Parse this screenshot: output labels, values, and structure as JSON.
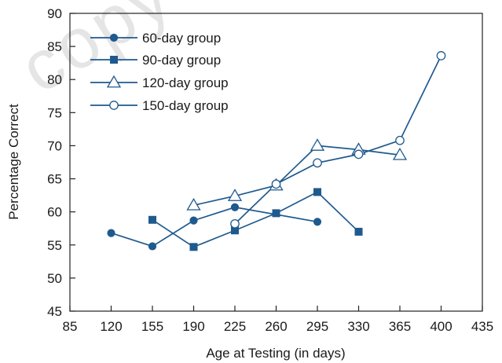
{
  "chart_data": {
    "type": "line",
    "title": "",
    "xlabel": "Age at Testing (in days)",
    "ylabel": "Percentage Correct",
    "xlim": [
      85,
      435
    ],
    "ylim": [
      45,
      90
    ],
    "xticks": [
      85,
      120,
      155,
      190,
      225,
      260,
      295,
      330,
      365,
      400,
      435
    ],
    "yticks": [
      45,
      50,
      55,
      60,
      65,
      70,
      75,
      80,
      85,
      90
    ],
    "grid": false,
    "legend_position": "top-left",
    "series": [
      {
        "name": "60-day group",
        "marker": "filled-circle",
        "color": "#1f5a8e",
        "x": [
          120,
          155,
          190,
          225,
          295
        ],
        "y": [
          56.8,
          54.8,
          58.7,
          60.7,
          58.5
        ]
      },
      {
        "name": "90-day group",
        "marker": "filled-square",
        "color": "#1f5a8e",
        "x": [
          155,
          190,
          225,
          260,
          295,
          330
        ],
        "y": [
          58.8,
          54.7,
          57.2,
          59.8,
          63.0,
          57.0
        ]
      },
      {
        "name": "120-day group",
        "marker": "open-triangle",
        "color": "#1f5a8e",
        "x": [
          190,
          225,
          260,
          295,
          330,
          365
        ],
        "y": [
          61.0,
          62.4,
          64.0,
          70.0,
          69.4,
          68.6
        ]
      },
      {
        "name": "150-day group",
        "marker": "open-circle",
        "color": "#1f5a8e",
        "x": [
          225,
          260,
          295,
          330,
          365,
          400
        ],
        "y": [
          58.2,
          64.2,
          67.4,
          68.7,
          70.8,
          83.6
        ]
      }
    ]
  },
  "watermark": "copy"
}
